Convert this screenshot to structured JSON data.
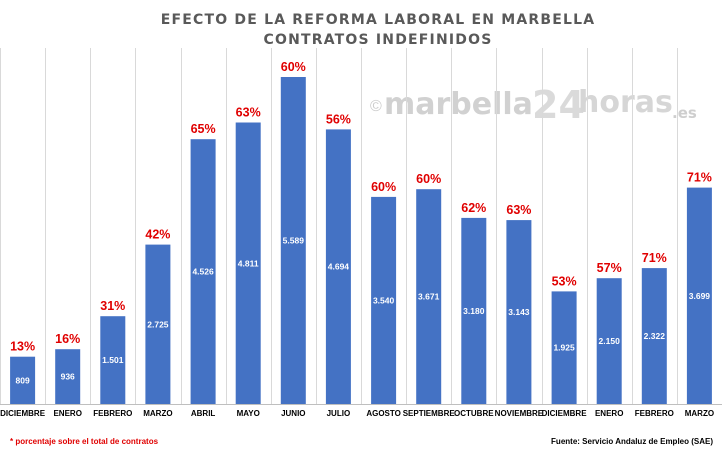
{
  "chart_data": {
    "type": "bar",
    "title": [
      "EFECTO DE LA REFORMA LABORAL EN MARBELLA",
      "CONTRATOS INDEFINIDOS"
    ],
    "categories": [
      "DICIEMBRE",
      "ENERO",
      "FEBRERO",
      "MARZO",
      "ABRIL",
      "MAYO",
      "JUNIO",
      "JULIO",
      "AGOSTO",
      "SEPTIEMBRE",
      "OCTUBRE",
      "NOVIEMBRE",
      "DICIEMBRE",
      "ENERO",
      "FEBRERO",
      "MARZO"
    ],
    "values": [
      809,
      936,
      1501,
      2725,
      4526,
      4811,
      5589,
      4694,
      3540,
      3671,
      3180,
      3143,
      1925,
      2150,
      2322,
      3699
    ],
    "value_labels": [
      "809",
      "936",
      "1.501",
      "2.725",
      "4.526",
      "4.811",
      "5.589",
      "4.694",
      "3.540",
      "3.671",
      "3.180",
      "3.143",
      "1.925",
      "2.150",
      "2.322",
      "3.699"
    ],
    "percent_labels": [
      "13%",
      "16%",
      "31%",
      "42%",
      "65%",
      "63%",
      "60%",
      "56%",
      "60%",
      "60%",
      "62%",
      "63%",
      "53%",
      "57%",
      "71%",
      "71%"
    ],
    "ylim": [
      0,
      6000
    ],
    "xlabel": "",
    "ylabel": "",
    "grid": "vertical separators",
    "bar_color": "#4472c4",
    "percent_color": "#e00000"
  },
  "footnote": "* porcentaje sobre el total de contratos",
  "source": "Fuente: Servicio Andaluz de Empleo (SAE)",
  "watermark": {
    "copyright": "©",
    "main": "marbella",
    "number": "24",
    "suffix": "horas",
    "domain": ".es"
  }
}
